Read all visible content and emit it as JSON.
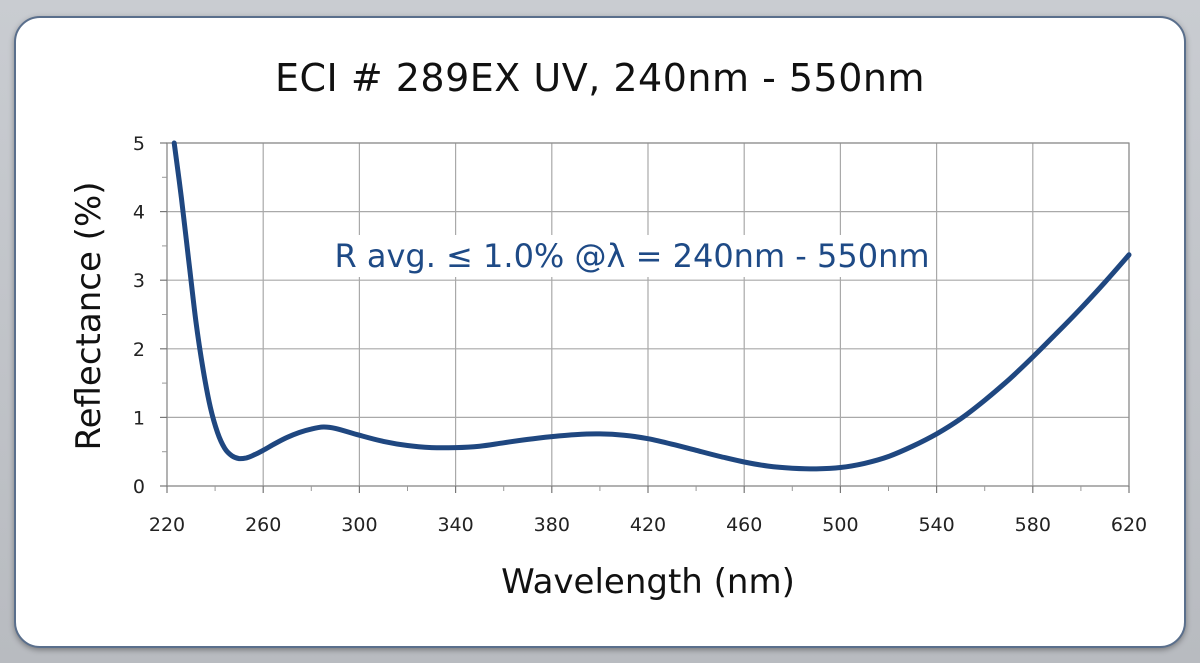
{
  "chart_data": {
    "type": "line",
    "title": "ECI # 289EX UV, 240nm - 550nm",
    "xlabel": "Wavelength (nm)",
    "ylabel": "Reflectance (%)",
    "xlim": [
      220,
      620
    ],
    "ylim": [
      0,
      5
    ],
    "x_ticks": [
      "220",
      "260",
      "300",
      "340",
      "380",
      "420",
      "460",
      "500",
      "540",
      "580",
      "620"
    ],
    "y_ticks": [
      "0",
      "1",
      "2",
      "3",
      "4",
      "5"
    ],
    "grid": true,
    "annotation": "R avg. ≤ 1.0% @λ = 240nm - 550nm",
    "series": [
      {
        "color": "#1f4780",
        "x": [
          223,
          226,
          229,
          232,
          235,
          238,
          241,
          244,
          247,
          250,
          253,
          256,
          260,
          265,
          270,
          275,
          280,
          285,
          290,
          300,
          310,
          320,
          330,
          340,
          350,
          360,
          370,
          380,
          390,
          400,
          410,
          420,
          430,
          440,
          450,
          460,
          470,
          480,
          490,
          500,
          510,
          520,
          530,
          540,
          550,
          560,
          570,
          580,
          590,
          600,
          610,
          620
        ],
        "y": [
          5.0,
          4.2,
          3.3,
          2.4,
          1.7,
          1.15,
          0.78,
          0.55,
          0.44,
          0.4,
          0.41,
          0.45,
          0.52,
          0.62,
          0.71,
          0.78,
          0.83,
          0.86,
          0.84,
          0.74,
          0.65,
          0.59,
          0.56,
          0.56,
          0.58,
          0.63,
          0.68,
          0.72,
          0.75,
          0.76,
          0.74,
          0.69,
          0.61,
          0.52,
          0.43,
          0.35,
          0.29,
          0.26,
          0.25,
          0.27,
          0.33,
          0.43,
          0.58,
          0.76,
          0.98,
          1.25,
          1.55,
          1.88,
          2.23,
          2.59,
          2.97,
          3.37
        ]
      }
    ]
  }
}
